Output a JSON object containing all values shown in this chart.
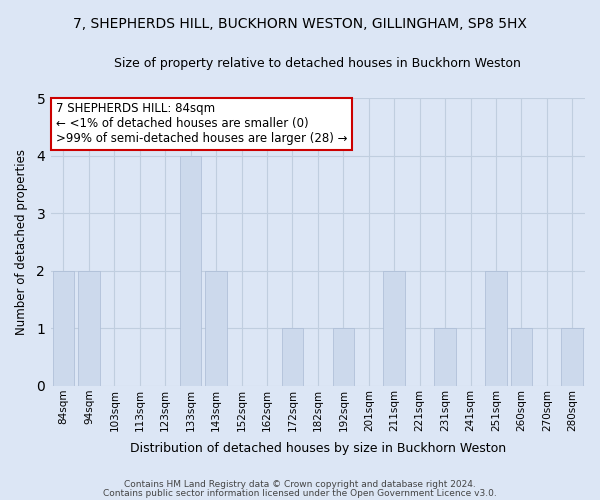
{
  "title_line1": "7, SHEPHERDS HILL, BUCKHORN WESTON, GILLINGHAM, SP8 5HX",
  "title_line2": "Size of property relative to detached houses in Buckhorn Weston",
  "xlabel": "Distribution of detached houses by size in Buckhorn Weston",
  "ylabel": "Number of detached properties",
  "categories": [
    "84sqm",
    "94sqm",
    "103sqm",
    "113sqm",
    "123sqm",
    "133sqm",
    "143sqm",
    "152sqm",
    "162sqm",
    "172sqm",
    "182sqm",
    "192sqm",
    "201sqm",
    "211sqm",
    "221sqm",
    "231sqm",
    "241sqm",
    "251sqm",
    "260sqm",
    "270sqm",
    "280sqm"
  ],
  "values": [
    2,
    2,
    0,
    0,
    0,
    4,
    2,
    0,
    0,
    1,
    0,
    1,
    0,
    2,
    0,
    1,
    0,
    2,
    1,
    0,
    1
  ],
  "bar_color": "#ccd9ec",
  "bar_edge_color": "#aabbd4",
  "annotation_box_text_line1": "7 SHEPHERDS HILL: 84sqm",
  "annotation_box_text_line2": "← <1% of detached houses are smaller (0)",
  "annotation_box_text_line3": ">99% of semi-detached houses are larger (28) →",
  "annotation_box_edge_color": "#cc0000",
  "annotation_box_face_color": "#ffffff",
  "ylim": [
    0,
    5
  ],
  "yticks": [
    0,
    1,
    2,
    3,
    4,
    5
  ],
  "fig_background_color": "#dce6f5",
  "plot_background_color": "#dce6f5",
  "grid_color": "#c0cedf",
  "footer_line1": "Contains HM Land Registry data © Crown copyright and database right 2024.",
  "footer_line2": "Contains public sector information licensed under the Open Government Licence v3.0."
}
